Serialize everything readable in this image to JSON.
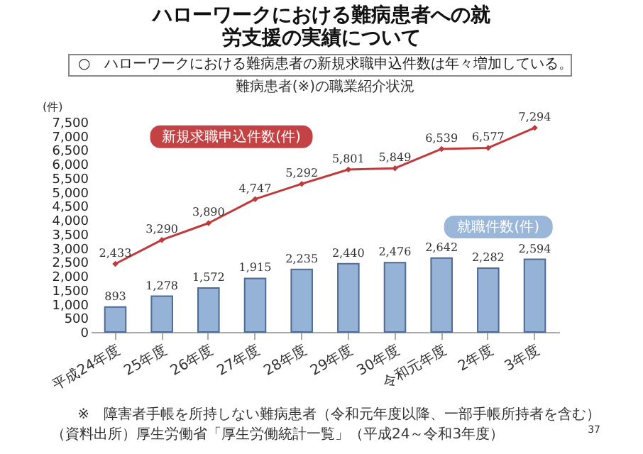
{
  "chart_data": {
    "type": "bar",
    "title": "ハローワークにおける難病患者への就労支援の実績について",
    "subtitle": "○　ハローワークにおける難病患者の新規求職申込件数は年々増加している。",
    "ylabel": "(件)",
    "categories": [
      "平成24年度",
      "25年度",
      "26年度",
      "27年度",
      "28年度",
      "29年度",
      "30年度",
      "令和元年度",
      "2年度",
      "3年度"
    ],
    "series": [
      {
        "name": "就職件数(件)",
        "color": "#95b3d7",
        "values": [
          893,
          1278,
          1572,
          1915,
          2235,
          2440,
          2476,
          2642,
          2282,
          2594
        ],
        "value_labels": [
          "893",
          "1,278",
          "1,572",
          "1,915",
          "2,235",
          "2,440",
          "2,476",
          "2,642",
          "2,282",
          "2,594"
        ]
      },
      {
        "name": "新規求職申込件数(件)",
        "type": "line",
        "color": "#c0393b",
        "values": [
          2433,
          3290,
          3890,
          4747,
          5292,
          5801,
          5849,
          6539,
          6577,
          7294
        ],
        "value_labels": [
          "2,433",
          "3,290",
          "3,890",
          "4,747",
          "5,292",
          "5,801",
          "5,849",
          "6,539",
          "6,577",
          "7,294"
        ]
      }
    ],
    "ylim": [
      0,
      7500
    ],
    "yticks": [
      0,
      500,
      {
        "value": 1000,
        "label": "1,000"
      },
      {
        "value": 1500,
        "label": "1,500"
      },
      {
        "value": 2000,
        "label": "2,000"
      },
      {
        "value": 2500,
        "label": "2,500"
      },
      {
        "value": 3000,
        "label": "3,000"
      },
      {
        "value": 3500,
        "label": "3,500"
      },
      {
        "value": 4000,
        "label": "4,000"
      },
      {
        "value": 4500,
        "label": "4,500"
      },
      {
        "value": 5000,
        "label": "5,000"
      },
      {
        "value": 5500,
        "label": "5,500"
      },
      {
        "value": 6000,
        "label": "6,000"
      },
      {
        "value": 6500,
        "label": "6,500"
      },
      {
        "value": 7000,
        "label": "7,000"
      },
      {
        "value": 7500,
        "label": "7,500"
      }
    ],
    "marker": "diamond",
    "line_style": "solid",
    "annotations": [
      "難病患者(※)の職業紹介状況",
      "※　障害者手帳を所持しない難病患者（令和元年度以降、一部手帳所持者を含む）",
      "（資料出所）厚生労働省「厚生労働統計一覧」（平成24～令和3年度）",
      "37"
    ]
  }
}
